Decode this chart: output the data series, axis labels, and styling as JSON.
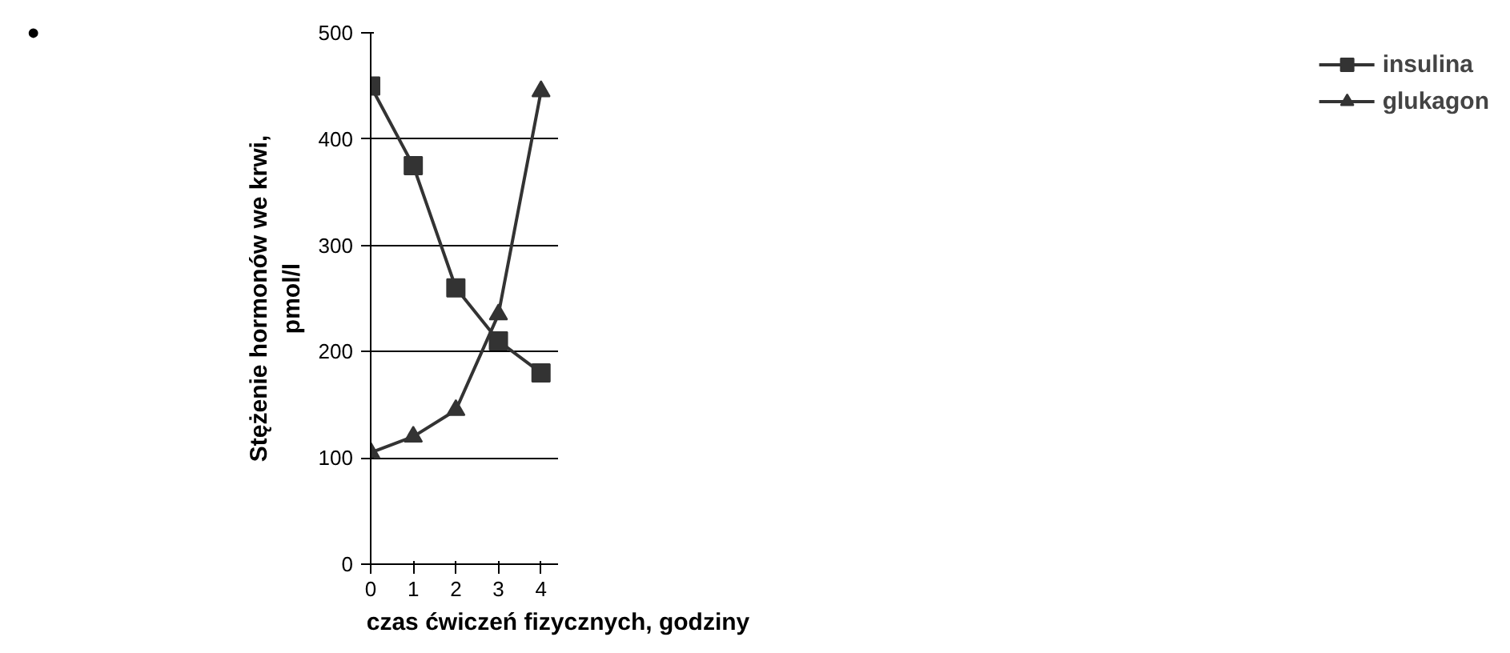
{
  "chart_data": {
    "type": "line",
    "xlabel": "czas ćwiczeń fizycznych, godziny",
    "ylabel": "Stężenie hormonów we krwi,\npmol/l",
    "x": [
      0,
      1,
      2,
      3,
      4
    ],
    "xlim": [
      0,
      4.4
    ],
    "xticks": [
      0,
      1,
      2,
      3,
      4
    ],
    "ylim": [
      0,
      500
    ],
    "yticks": [
      0,
      100,
      200,
      300,
      400,
      500
    ],
    "grid": "y",
    "legend": "right",
    "annotations": [
      "•"
    ],
    "series": [
      {
        "name": "insulina",
        "color": "#333333",
        "marker": "square",
        "values": [
          450,
          375,
          260,
          210,
          180
        ]
      },
      {
        "name": "glukagon",
        "color": "#333333",
        "marker": "triangle",
        "values": [
          105,
          120,
          145,
          235,
          445
        ]
      }
    ]
  }
}
